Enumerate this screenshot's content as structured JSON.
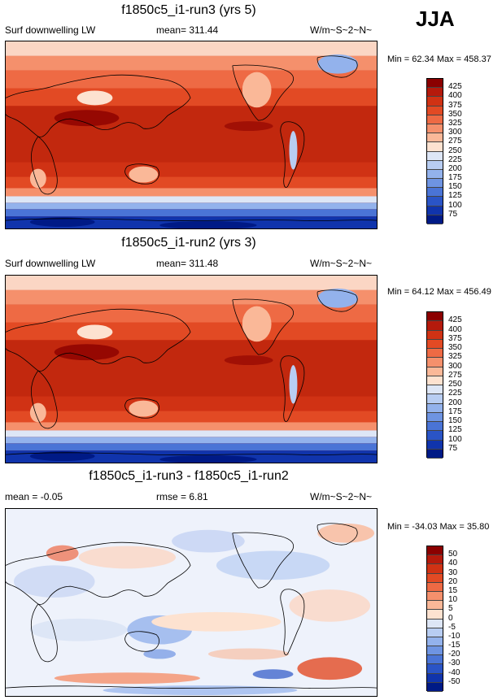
{
  "season": "JJA",
  "panels": [
    {
      "title": "f1850c5_i1-run3 (yrs 5)",
      "left_text": "Surf downwelling LW",
      "center_text": "mean= 311.44",
      "units": "W/m~S~2~N~",
      "minmax": "Min =  62.34 Max = 458.37",
      "colorbar": {
        "labels": [
          "425",
          "400",
          "375",
          "350",
          "325",
          "300",
          "275",
          "250",
          "225",
          "200",
          "175",
          "150",
          "125",
          "100",
          "75"
        ],
        "colors": [
          "#8b0000",
          "#b51a0c",
          "#d03214",
          "#e24a24",
          "#ee6a44",
          "#f5906c",
          "#fab898",
          "#fde2d0",
          "#dde6f6",
          "#b8cdf2",
          "#93b2ec",
          "#6e94e2",
          "#4a74d6",
          "#2a54c6",
          "#1034ac",
          "#001a86"
        ]
      }
    },
    {
      "title": "f1850c5_i1-run2 (yrs 3)",
      "left_text": "Surf downwelling LW",
      "center_text": "mean= 311.48",
      "units": "W/m~S~2~N~",
      "minmax": "Min =  64.12 Max = 456.49",
      "colorbar": {
        "labels": [
          "425",
          "400",
          "375",
          "350",
          "325",
          "300",
          "275",
          "250",
          "225",
          "200",
          "175",
          "150",
          "125",
          "100",
          "75"
        ],
        "colors": [
          "#8b0000",
          "#b51a0c",
          "#d03214",
          "#e24a24",
          "#ee6a44",
          "#f5906c",
          "#fab898",
          "#fde2d0",
          "#dde6f6",
          "#b8cdf2",
          "#93b2ec",
          "#6e94e2",
          "#4a74d6",
          "#2a54c6",
          "#1034ac",
          "#001a86"
        ]
      }
    },
    {
      "title": "f1850c5_i1-run3 - f1850c5_i1-run2",
      "left_text": "mean =  -0.05",
      "center_text": "rmse =   6.81",
      "units": "W/m~S~2~N~",
      "minmax": "Min = -34.03 Max =  35.80",
      "colorbar": {
        "labels": [
          "50",
          "40",
          "30",
          "20",
          "15",
          "10",
          "5",
          "0",
          "-5",
          "-10",
          "-15",
          "-20",
          "-30",
          "-40",
          "-50"
        ],
        "colors": [
          "#8b0000",
          "#b51a0c",
          "#d03214",
          "#e24a24",
          "#ee6a44",
          "#f5906c",
          "#fab898",
          "#fde2d0",
          "#dde6f6",
          "#b8cdf2",
          "#93b2ec",
          "#6e94e2",
          "#4a74d6",
          "#2a54c6",
          "#1034ac",
          "#001a86"
        ]
      }
    }
  ]
}
